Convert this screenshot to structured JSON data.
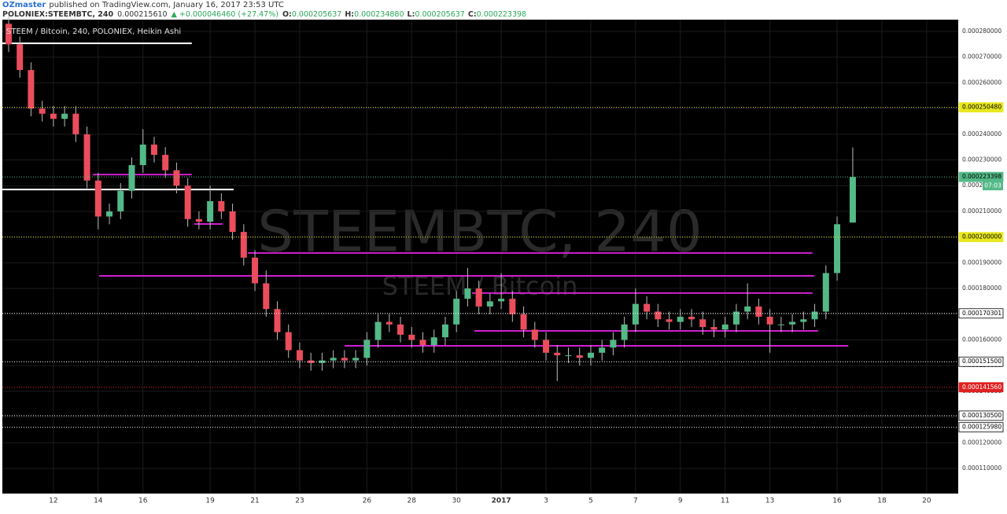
{
  "header": {
    "author": "OZmaster",
    "published": "published on TradingView.com, January 16, 2017 23:53 UTC",
    "symbol": "POLONIEX:STEEMBTC, 240",
    "last": "0.000215610",
    "change": "▲ +0.000046460 (+27.47%)",
    "o_label": "O:",
    "o": "0.000205637",
    "h_label": "H:",
    "h": "0.000234880",
    "l_label": "L:",
    "l": "0.000205637",
    "c_label": "C:",
    "c": "0.000223398"
  },
  "chart_data": {
    "type": "candlestick",
    "legend": "STEEM / Bitcoin, 240, POLONIEX, Heikin Ashi",
    "watermark": "STEEMBTC, 240",
    "watermark_sub": "STEEM / Bitcoin",
    "countdown": "07:03",
    "grid": true,
    "up_color": "#53b987",
    "down_color": "#eb4d5c",
    "x": [
      10,
      10.5,
      11,
      11.5,
      12,
      12.5,
      13,
      13.5,
      14,
      14.5,
      15,
      15.5,
      16,
      16.5,
      17,
      17.5,
      18,
      18.5,
      19,
      19.5,
      20,
      20.5,
      21,
      21.5,
      22,
      22.5,
      23,
      23.5,
      24,
      24.5,
      25,
      25.5,
      26,
      26.5,
      27,
      27.5,
      28,
      28.5,
      29,
      29.5,
      30,
      30.5,
      31,
      31.5,
      32,
      32.5,
      33,
      33.5,
      34,
      34.5,
      35,
      35.5,
      36,
      36.5,
      37,
      37.5,
      38,
      38.5,
      39,
      39.5,
      40,
      40.5,
      41,
      41.5,
      42,
      42.5,
      43,
      43.5,
      44,
      44.5,
      45,
      45.5,
      46,
      46.5,
      47,
      47.7
    ],
    "open": [
      0.000283,
      0.000275,
      0.000265,
      0.00025,
      0.000248,
      0.000246,
      0.000248,
      0.00024,
      0.000222,
      0.000208,
      0.00021,
      0.000218,
      0.000228,
      0.000236,
      0.000232,
      0.000226,
      0.00022,
      0.000207,
      0.000206,
      0.000214,
      0.00021,
      0.000202,
      0.000192,
      0.000182,
      0.000172,
      0.000163,
      0.000156,
      0.000152,
      0.000151,
      0.000152,
      0.000153,
      0.000152,
      0.000153,
      0.00016,
      0.000167,
      0.000166,
      0.000162,
      0.00016,
      0.000158,
      0.000161,
      0.000166,
      0.000176,
      0.00018,
      0.000173,
      0.000175,
      0.000176,
      0.00017,
      0.000164,
      0.00016,
      0.000155,
      0.000154,
      0.000154,
      0.000153,
      0.000155,
      0.000157,
      0.00016,
      0.000166,
      0.000174,
      0.000171,
      0.000168,
      0.000167,
      0.000169,
      0.000168,
      0.000165,
      0.000164,
      0.000166,
      0.000171,
      0.000173,
      0.000169,
      0.000166,
      0.000166,
      0.000167,
      0.000168,
      0.000171,
      0.000186,
      0.000205637
    ],
    "high": [
      0.000286,
      0.000278,
      0.000268,
      0.000253,
      0.000251,
      0.000251,
      0.000251,
      0.000243,
      0.000225,
      0.000213,
      0.000221,
      0.000231,
      0.000242,
      0.000239,
      0.000235,
      0.000229,
      0.000223,
      0.00021,
      0.00022,
      0.000217,
      0.000213,
      0.000205,
      0.000195,
      0.000187,
      0.000175,
      0.000166,
      0.000159,
      0.000155,
      0.000155,
      0.000156,
      0.000156,
      0.000156,
      0.000163,
      0.00017,
      0.00017,
      0.000169,
      0.000165,
      0.000163,
      0.000164,
      0.000169,
      0.000179,
      0.000188,
      0.000183,
      0.000178,
      0.000186,
      0.000179,
      0.000173,
      0.000167,
      0.000163,
      0.000158,
      0.000157,
      0.000157,
      0.000158,
      0.00016,
      0.000163,
      0.000169,
      0.00018,
      0.000177,
      0.000174,
      0.000171,
      0.000172,
      0.000172,
      0.000171,
      0.000168,
      0.000169,
      0.000174,
      0.000182,
      0.000176,
      0.000172,
      0.000169,
      0.00017,
      0.000171,
      0.000174,
      0.000189,
      0.000208,
      0.00023488
    ],
    "low": [
      0.000272,
      0.000262,
      0.000247,
      0.000245,
      0.000243,
      0.000243,
      0.000237,
      0.000219,
      0.000203,
      0.000205,
      0.000207,
      0.000215,
      0.000225,
      0.000229,
      0.000223,
      0.000217,
      0.000204,
      0.000203,
      0.000203,
      0.000207,
      0.000199,
      0.000189,
      0.000179,
      0.000169,
      0.00016,
      0.000153,
      0.000149,
      0.000148,
      0.000148,
      0.000149,
      0.000149,
      0.000149,
      0.00015,
      0.000157,
      0.000163,
      0.000159,
      0.000157,
      0.000155,
      0.000155,
      0.000158,
      0.000163,
      0.000173,
      0.00017,
      0.00017,
      0.000172,
      0.000167,
      0.000161,
      0.000157,
      0.000152,
      0.000144,
      0.000151,
      0.00015,
      0.00015,
      0.000152,
      0.000154,
      0.000157,
      0.000163,
      0.000168,
      0.000165,
      0.000164,
      0.000164,
      0.000165,
      0.000162,
      0.000161,
      0.000161,
      0.000163,
      0.000168,
      0.000166,
      0.000155,
      0.000163,
      0.000163,
      0.000164,
      0.000165,
      0.000168,
      0.000183,
      0.000205637
    ],
    "close": [
      0.000275,
      0.000265,
      0.00025,
      0.000248,
      0.000246,
      0.000248,
      0.00024,
      0.000222,
      0.000208,
      0.00021,
      0.000218,
      0.000228,
      0.000236,
      0.000232,
      0.000226,
      0.00022,
      0.000207,
      0.000206,
      0.000214,
      0.00021,
      0.000202,
      0.000192,
      0.000182,
      0.000172,
      0.000163,
      0.000156,
      0.000152,
      0.000151,
      0.000152,
      0.000153,
      0.000152,
      0.000153,
      0.00016,
      0.000167,
      0.000166,
      0.000162,
      0.00016,
      0.000158,
      0.000161,
      0.000166,
      0.000176,
      0.00018,
      0.000173,
      0.000175,
      0.000176,
      0.00017,
      0.000164,
      0.00016,
      0.000155,
      0.000154,
      0.000154,
      0.000153,
      0.000155,
      0.000157,
      0.00016,
      0.000166,
      0.000174,
      0.000171,
      0.000168,
      0.000167,
      0.000169,
      0.000168,
      0.000165,
      0.000164,
      0.000166,
      0.000171,
      0.000173,
      0.000169,
      0.000166,
      0.000166,
      0.000167,
      0.000168,
      0.000171,
      0.000186,
      0.000205,
      0.000223398
    ],
    "xlim": [
      9.72,
      52.41
    ],
    "xticks": [
      12,
      14,
      16,
      19,
      21,
      23,
      26,
      28,
      30,
      {
        "value": 32,
        "label": "2017"
      },
      {
        "value": 34,
        "label": "3"
      },
      {
        "value": 36,
        "label": "5"
      },
      {
        "value": 38,
        "label": "7"
      },
      {
        "value": 40,
        "label": "9"
      },
      {
        "value": 42,
        "label": "11"
      },
      {
        "value": 44,
        "label": "13"
      },
      {
        "value": 47,
        "label": "16"
      },
      {
        "value": 49,
        "label": "18"
      },
      {
        "value": 51,
        "label": "20"
      }
    ],
    "ylim": [
      0.0001002,
      0.0002846
    ],
    "yticks": [
      {
        "value": 0.00028,
        "label": "0.000280000"
      },
      {
        "value": 0.00027,
        "label": "0.000270000"
      },
      {
        "value": 0.00026,
        "label": "0.000260000"
      },
      {
        "value": 0.00025,
        "label": "0.000250000"
      },
      {
        "value": 0.00024,
        "label": "0.000240000"
      },
      {
        "value": 0.00023,
        "label": "0.000230000"
      },
      {
        "value": 0.00022,
        "label": "0.000220000"
      },
      {
        "value": 0.00021,
        "label": "0.000210000"
      },
      {
        "value": 0.0002,
        "label": "0.000200000"
      },
      {
        "value": 0.00019,
        "label": "0.000190000"
      },
      {
        "value": 0.00018,
        "label": "0.000180000"
      },
      {
        "value": 0.00017,
        "label": "0.000170000"
      },
      {
        "value": 0.00016,
        "label": "0.000160000"
      },
      {
        "value": 0.00015,
        "label": "0.000150000"
      },
      {
        "value": 0.00014,
        "label": "0.000140000"
      },
      {
        "value": 0.00013,
        "label": "0.000130000"
      },
      {
        "value": 0.00012,
        "label": "0.000120000"
      },
      {
        "value": 0.00011,
        "label": "0.000110000"
      }
    ],
    "price_lines": [
      {
        "value": 0.00025048,
        "label": "0.000250480",
        "color": "#e8e820"
      },
      {
        "value": 0.000223398,
        "label": "0.000223398",
        "color": "#53b987"
      },
      {
        "value": 0.0002,
        "label": "0.000200000",
        "color": "#e8e820"
      },
      {
        "value": 0.000170301,
        "label": "0.000170301",
        "color": "#ffffff"
      },
      {
        "value": 0.0001515,
        "label": "0.000151500",
        "color": "#ffffff"
      },
      {
        "value": 0.00014156,
        "label": "0.000141560",
        "color": "#e02020"
      },
      {
        "value": 0.0001305,
        "label": "0.000130500",
        "color": "#ffffff"
      },
      {
        "value": 0.00012598,
        "label": "0.000125980",
        "color": "#ffffff"
      }
    ],
    "drawings": [
      {
        "x": [
          9.72,
          18.18
        ],
        "y": 0.0002754,
        "color": "#ffffff"
      },
      {
        "x": [
          9.72,
          20.05
        ],
        "y": 0.0002185,
        "color": "#ffffff"
      },
      {
        "x": [
          13.76,
          18.18
        ],
        "y": 0.0002243,
        "color": "#d020d0"
      },
      {
        "x": [
          18.3,
          19.55
        ],
        "y": 0.0002051,
        "color": "#d020d0"
      },
      {
        "x": [
          20.68,
          45.9
        ],
        "y": 0.0001938,
        "color": "#d020d0"
      },
      {
        "x": [
          14.04,
          45.98
        ],
        "y": 0.0001849,
        "color": "#d020d0"
      },
      {
        "x": [
          30.7,
          45.9
        ],
        "y": 0.0001782,
        "color": "#d020d0"
      },
      {
        "x": [
          30.8,
          46.15
        ],
        "y": 0.0001635,
        "color": "#d020d0"
      },
      {
        "x": [
          25.0,
          47.5
        ],
        "y": 0.0001577,
        "color": "#d020d0"
      }
    ]
  }
}
